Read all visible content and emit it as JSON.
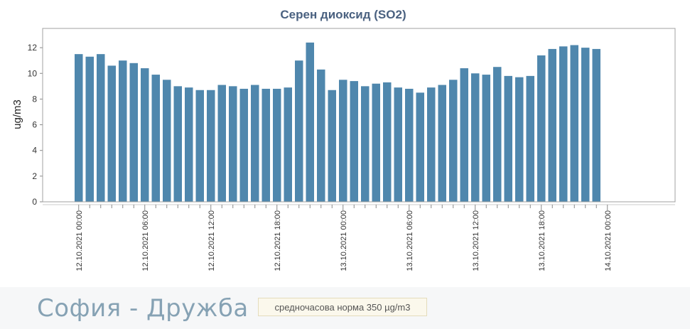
{
  "colors": {
    "bar": "#4f87ad",
    "title": "#4a6180",
    "plot_border": "#a0a0a0"
  },
  "station": {
    "name": "София - Дружба"
  },
  "norm": {
    "label": "средночасова норма 350 µg/m3"
  },
  "chart_data": {
    "type": "bar",
    "title": "Серен диоксид (SO2)",
    "xlabel": "",
    "ylabel": "ug/m3",
    "ylim": [
      0,
      13.5
    ],
    "yticks": [
      0,
      2,
      4,
      6,
      8,
      10,
      12
    ],
    "grid": false,
    "x_tick_labels": [
      "12.10.2021 00:00",
      "12.10.2021 06:00",
      "12.10.2021 12:00",
      "12.10.2021 18:00",
      "13.10.2021 00:00",
      "13.10.2021 06:00",
      "13.10.2021 12:00",
      "13.10.2021 18:00",
      "14.10.2021 00:00"
    ],
    "x_tick_every": 6,
    "values": [
      11.5,
      11.3,
      11.5,
      10.6,
      11.0,
      10.8,
      10.4,
      9.9,
      9.5,
      9.0,
      8.9,
      8.7,
      8.7,
      9.1,
      9.0,
      8.8,
      9.1,
      8.8,
      8.8,
      8.9,
      11.0,
      12.4,
      10.3,
      8.7,
      9.5,
      9.4,
      9.0,
      9.2,
      9.3,
      8.9,
      8.8,
      8.5,
      8.9,
      9.1,
      9.5,
      10.4,
      10.0,
      9.9,
      10.5,
      9.8,
      9.7,
      9.8,
      11.4,
      11.9,
      12.1,
      12.2,
      12.0,
      11.9
    ]
  }
}
